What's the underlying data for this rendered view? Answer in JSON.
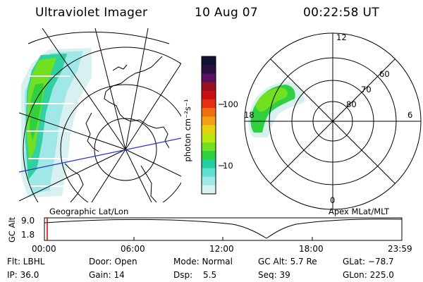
{
  "header": {
    "instrument": "Ultraviolet Imager",
    "date": "10 Aug 07",
    "time": "00:22:58 UT"
  },
  "left_map": {
    "caption": "Geographic Lat/Lon"
  },
  "colorbar": {
    "units": "photon cm⁻²s⁻¹",
    "ticks": [
      "100",
      "10"
    ],
    "colors": [
      "#111133",
      "#2a1040",
      "#5a1060",
      "#9a1020",
      "#c81010",
      "#e83010",
      "#f07010",
      "#f0a010",
      "#e8d010",
      "#b8e810",
      "#70e020",
      "#30d040",
      "#20d0a0",
      "#60e0d0",
      "#a0e8e8",
      "#d8f0f0"
    ]
  },
  "right_map": {
    "caption": "Apex MLat/MLT",
    "mlt_labels": {
      "top": "12",
      "left": "18",
      "right": "6",
      "bottom": "0"
    },
    "lat_labels": [
      "60",
      "70",
      "80"
    ]
  },
  "timeline": {
    "ylabel": "GC Alt",
    "ytick_top": "9.0",
    "ytick_bottom": "1.8",
    "xticks": [
      "00:00",
      "06:00",
      "12:00",
      "18:00",
      "23:59"
    ]
  },
  "status": {
    "filter": "Flt: LBHL",
    "ip": "IP: 36.0",
    "door": "Door: Open",
    "gain": "Gain: 14",
    "mode": "Mode: Normal",
    "dsp_label": "Dsp:",
    "dsp_value": "5.5",
    "gc_alt": "GC Alt: 5.7 Re",
    "seq": "Seq: 39",
    "glat": "GLat: −78.7",
    "glon": "GLon: 225.0"
  }
}
